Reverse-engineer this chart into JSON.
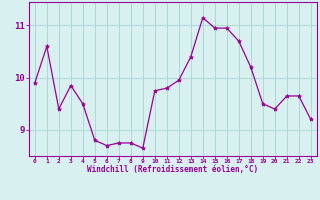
{
  "hours": [
    0,
    1,
    2,
    3,
    4,
    5,
    6,
    7,
    8,
    9,
    10,
    11,
    12,
    13,
    14,
    15,
    16,
    17,
    18,
    19,
    20,
    21,
    22,
    23
  ],
  "values": [
    9.9,
    10.6,
    9.4,
    9.85,
    9.5,
    8.8,
    8.7,
    8.75,
    8.75,
    8.65,
    9.75,
    9.8,
    9.95,
    10.4,
    11.15,
    10.95,
    10.95,
    10.7,
    10.2,
    9.5,
    9.4,
    9.65,
    9.65,
    9.2
  ],
  "line_color": "#990099",
  "marker": "*",
  "marker_size": 3,
  "bg_color": "#d8f0f0",
  "grid_color": "#aad4d4",
  "xlabel": "Windchill (Refroidissement éolien,°C)",
  "xlabel_color": "#990099",
  "tick_color": "#990099",
  "ylim": [
    8.5,
    11.45
  ],
  "yticks": [
    9,
    10,
    11
  ],
  "spine_color": "#990099"
}
